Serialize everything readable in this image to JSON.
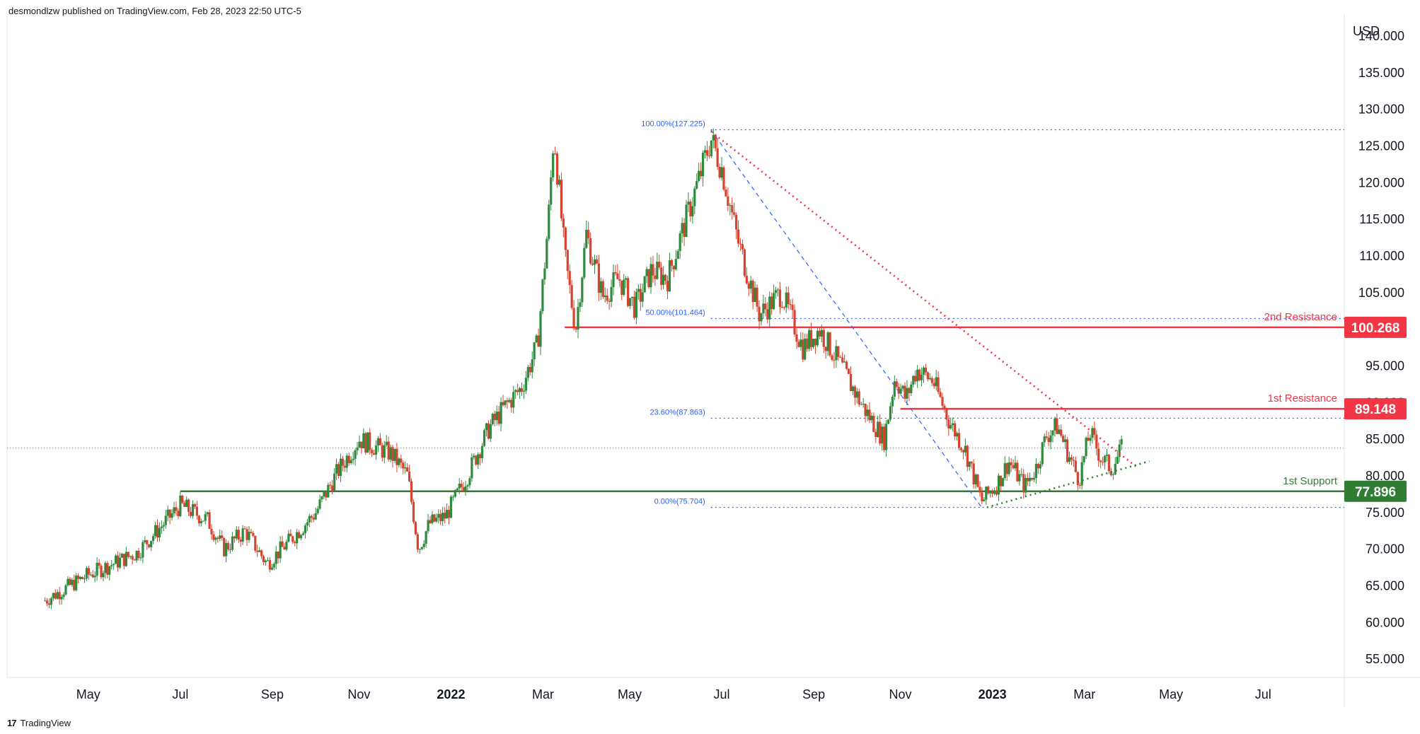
{
  "header": {
    "publisher": "desmondlzw published on TradingView.com, Feb 28, 2023 22:50 UTC-5"
  },
  "footer": {
    "brand": "TradingView",
    "logo": "17"
  },
  "chart_data": {
    "type": "candlestick",
    "currency": "USD",
    "ylim": [
      52.5,
      143.0
    ],
    "y_ticks": [
      "140.000",
      "135.000",
      "130.000",
      "125.000",
      "120.000",
      "115.000",
      "110.000",
      "105.000",
      "100.000",
      "95.000",
      "90.000",
      "85.000",
      "80.000",
      "75.000",
      "70.000",
      "65.000",
      "60.000",
      "55.000"
    ],
    "x_ticks": [
      {
        "label": "May",
        "bold": false
      },
      {
        "label": "Jul",
        "bold": false
      },
      {
        "label": "Sep",
        "bold": false
      },
      {
        "label": "Nov",
        "bold": false
      },
      {
        "label": "2022",
        "bold": true
      },
      {
        "label": "Mar",
        "bold": false
      },
      {
        "label": "May",
        "bold": false
      },
      {
        "label": "Jul",
        "bold": false
      },
      {
        "label": "Sep",
        "bold": false
      },
      {
        "label": "Nov",
        "bold": false
      },
      {
        "label": "2023",
        "bold": true
      },
      {
        "label": "Mar",
        "bold": false
      },
      {
        "label": "May",
        "bold": false
      },
      {
        "label": "Jul",
        "bold": false
      }
    ],
    "price_path": [
      {
        "t": 2021.25,
        "v": 63.0
      },
      {
        "t": 2021.33,
        "v": 66.5
      },
      {
        "t": 2021.42,
        "v": 69.5
      },
      {
        "t": 2021.5,
        "v": 76.0
      },
      {
        "t": 2021.55,
        "v": 74.0
      },
      {
        "t": 2021.58,
        "v": 70.0
      },
      {
        "t": 2021.62,
        "v": 72.5
      },
      {
        "t": 2021.66,
        "v": 68.0
      },
      {
        "t": 2021.7,
        "v": 71.0
      },
      {
        "t": 2021.75,
        "v": 75.0
      },
      {
        "t": 2021.79,
        "v": 80.5
      },
      {
        "t": 2021.83,
        "v": 85.0
      },
      {
        "t": 2021.86,
        "v": 84.0
      },
      {
        "t": 2021.89,
        "v": 83.0
      },
      {
        "t": 2021.92,
        "v": 80.0
      },
      {
        "t": 2021.94,
        "v": 70.0
      },
      {
        "t": 2021.96,
        "v": 73.5
      },
      {
        "t": 2021.99,
        "v": 74.5
      },
      {
        "t": 2022.03,
        "v": 80.0
      },
      {
        "t": 2022.07,
        "v": 86.5
      },
      {
        "t": 2022.1,
        "v": 89.5
      },
      {
        "t": 2022.13,
        "v": 92.0
      },
      {
        "t": 2022.16,
        "v": 98.0
      },
      {
        "t": 2022.18,
        "v": 115.0
      },
      {
        "t": 2022.19,
        "v": 127.0
      },
      {
        "t": 2022.21,
        "v": 110.0
      },
      {
        "t": 2022.23,
        "v": 100.0
      },
      {
        "t": 2022.25,
        "v": 113.0
      },
      {
        "t": 2022.28,
        "v": 104.5
      },
      {
        "t": 2022.31,
        "v": 107.0
      },
      {
        "t": 2022.34,
        "v": 103.0
      },
      {
        "t": 2022.37,
        "v": 108.0
      },
      {
        "t": 2022.4,
        "v": 107.0
      },
      {
        "t": 2022.43,
        "v": 114.0
      },
      {
        "t": 2022.46,
        "v": 121.0
      },
      {
        "t": 2022.48,
        "v": 126.0
      },
      {
        "t": 2022.5,
        "v": 122.0
      },
      {
        "t": 2022.53,
        "v": 112.0
      },
      {
        "t": 2022.57,
        "v": 102.0
      },
      {
        "t": 2022.61,
        "v": 105.0
      },
      {
        "t": 2022.65,
        "v": 97.5
      },
      {
        "t": 2022.68,
        "v": 100.0
      },
      {
        "t": 2022.72,
        "v": 95.0
      },
      {
        "t": 2022.76,
        "v": 89.5
      },
      {
        "t": 2022.8,
        "v": 85.0
      },
      {
        "t": 2022.82,
        "v": 93.5
      },
      {
        "t": 2022.84,
        "v": 90.5
      },
      {
        "t": 2022.86,
        "v": 94.5
      },
      {
        "t": 2022.89,
        "v": 93.0
      },
      {
        "t": 2022.92,
        "v": 87.5
      },
      {
        "t": 2022.95,
        "v": 83.5
      },
      {
        "t": 2022.98,
        "v": 76.5
      },
      {
        "t": 2023.01,
        "v": 79.0
      },
      {
        "t": 2023.03,
        "v": 82.0
      },
      {
        "t": 2023.06,
        "v": 78.5
      },
      {
        "t": 2023.08,
        "v": 81.0
      },
      {
        "t": 2023.1,
        "v": 85.5
      },
      {
        "t": 2023.12,
        "v": 86.8
      },
      {
        "t": 2023.14,
        "v": 83.0
      },
      {
        "t": 2023.16,
        "v": 79.5
      },
      {
        "t": 2023.18,
        "v": 86.0
      },
      {
        "t": 2023.2,
        "v": 82.5
      },
      {
        "t": 2023.22,
        "v": 81.0
      },
      {
        "t": 2023.24,
        "v": 83.8
      }
    ],
    "last_price": 83.8,
    "fibonacci": {
      "levels": [
        {
          "label": "100.00%(127.225)",
          "value": 127.225
        },
        {
          "label": "50.00%(101.464)",
          "value": 101.464
        },
        {
          "label": "23.60%(87.863)",
          "value": 87.863
        },
        {
          "label": "0.00%(75.704)",
          "value": 75.704
        }
      ],
      "color": "#2962ff"
    },
    "levels": [
      {
        "name": "2nd Resistance",
        "value": 100.268,
        "badge": "100.268",
        "color": "#f23645"
      },
      {
        "name": "1st Resistance",
        "value": 89.148,
        "badge": "89.148",
        "color": "#f23645"
      },
      {
        "name": "1st Support",
        "value": 77.896,
        "badge": "77.896",
        "color": "#2e7d32"
      }
    ],
    "trendlines": {
      "resistance": {
        "color": "#f23645",
        "from": {
          "t": 2022.48,
          "v": 127.0
        },
        "to": {
          "t": 2023.27,
          "v": 81.0
        }
      },
      "support": {
        "color": "#2e7d32",
        "from": {
          "t": 2022.99,
          "v": 75.7
        },
        "to": {
          "t": 2023.29,
          "v": 82.0
        }
      },
      "fib_line": {
        "color": "#2962ff",
        "from": {
          "t": 2022.48,
          "v": 127.225
        },
        "to": {
          "t": 2022.98,
          "v": 75.704
        }
      }
    },
    "colors": {
      "up": "#2e8b3d",
      "down": "#d8432f"
    }
  }
}
